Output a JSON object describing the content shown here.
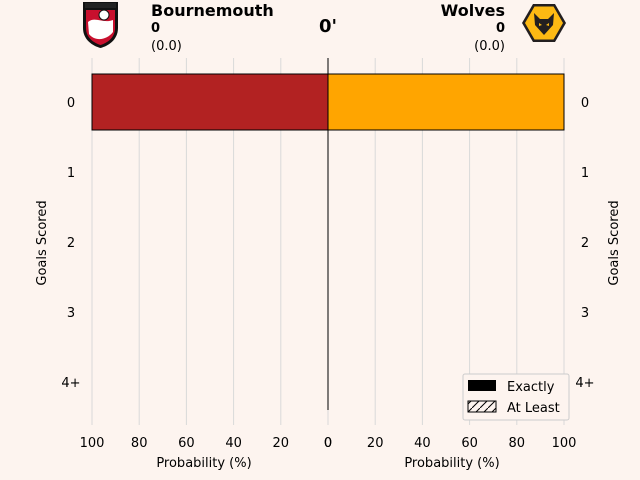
{
  "header": {
    "minute": "0'",
    "home": {
      "name": "Bournemouth",
      "score": "0",
      "xg": "(0.0)"
    },
    "away": {
      "name": "Wolves",
      "score": "0",
      "xg": "(0.0)"
    }
  },
  "colors": {
    "home": "#b22222",
    "away": "#ffa500",
    "background": "#fdf4ef"
  },
  "crests": {
    "home": "bournemouth-crest-icon",
    "away": "wolves-crest-icon"
  },
  "chart_data": {
    "type": "bar",
    "orientation": "horizontal-butterfly",
    "categories": [
      "0",
      "1",
      "2",
      "3",
      "4+"
    ],
    "series": [
      {
        "name": "Bournemouth",
        "values": [
          100,
          0,
          0,
          0,
          0
        ]
      },
      {
        "name": "Wolves",
        "values": [
          100,
          0,
          0,
          0,
          0
        ]
      }
    ],
    "xticks": [
      "100",
      "80",
      "60",
      "40",
      "20",
      "0"
    ],
    "xticks_right": [
      "0",
      "20",
      "40",
      "60",
      "80",
      "100"
    ],
    "xlim": [
      0,
      100
    ],
    "xlabel_left": "Probability (%)",
    "xlabel_right": "Probability (%)",
    "ylabel_left": "Goals Scored",
    "ylabel_right": "Goals Scored",
    "grid": "vertical",
    "legend": {
      "position": "bottom-right",
      "entries": [
        "Exactly",
        "At Least"
      ]
    }
  }
}
